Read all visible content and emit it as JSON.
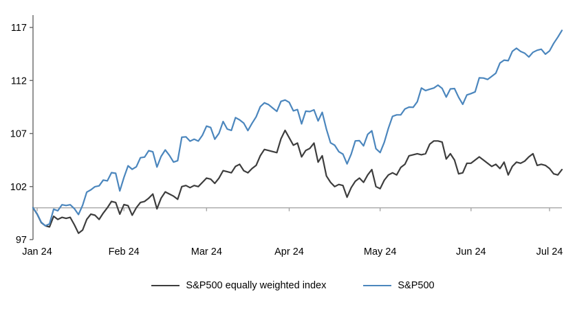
{
  "chart_data": {
    "type": "line",
    "title": "",
    "xlabel": "",
    "ylabel": "",
    "ylim": [
      97,
      117
    ],
    "y_ticks": [
      97,
      102,
      107,
      112,
      117
    ],
    "x_tick_labels": [
      "Jan 24",
      "Feb 24",
      "Mar 24",
      "Apr 24",
      "May 24",
      "Jun 24",
      "Jul 24"
    ],
    "x_tick_indices": [
      1,
      22,
      42,
      62,
      84,
      106,
      125
    ],
    "axis_crosses_at": 100,
    "grid": false,
    "legend_position": "bottom",
    "series": [
      {
        "name": "S&P500 equally weighted index",
        "color": "#3d3d3d",
        "values": [
          100.0,
          99.4,
          98.6,
          98.3,
          98.2,
          99.2,
          98.9,
          99.1,
          99.0,
          99.1,
          98.4,
          97.6,
          97.9,
          98.9,
          99.4,
          99.3,
          98.9,
          99.5,
          100.0,
          100.6,
          100.5,
          99.4,
          100.3,
          100.2,
          99.3,
          100.0,
          100.5,
          100.6,
          100.9,
          101.3,
          99.9,
          100.9,
          101.5,
          101.3,
          101.1,
          100.8,
          102.0,
          102.1,
          101.9,
          102.1,
          102.0,
          102.4,
          102.8,
          102.7,
          102.3,
          102.8,
          103.5,
          103.4,
          103.3,
          103.9,
          104.1,
          103.5,
          103.3,
          103.7,
          104.0,
          104.9,
          105.5,
          105.4,
          105.3,
          105.2,
          106.5,
          107.3,
          106.6,
          105.9,
          106.1,
          104.8,
          105.4,
          105.6,
          106.1,
          104.3,
          104.9,
          103.0,
          102.4,
          102.0,
          102.2,
          102.1,
          101.0,
          101.9,
          102.5,
          102.8,
          102.4,
          103.1,
          103.6,
          102.0,
          101.8,
          102.6,
          103.1,
          103.3,
          103.1,
          103.8,
          104.1,
          104.9,
          105.0,
          105.1,
          105.0,
          105.1,
          106.0,
          106.3,
          106.3,
          106.2,
          104.6,
          105.1,
          104.5,
          103.2,
          103.3,
          104.2,
          104.2,
          104.5,
          104.8,
          104.5,
          104.2,
          103.9,
          104.1,
          103.7,
          104.3,
          103.1,
          103.9,
          104.3,
          104.2,
          104.4,
          104.8,
          105.1,
          104.0,
          104.1,
          104.0,
          103.7,
          103.2,
          103.1,
          103.6
        ]
      },
      {
        "name": "S&P500",
        "color": "#4b86bd",
        "values": [
          100.0,
          99.43,
          98.64,
          98.3,
          98.48,
          99.87,
          99.72,
          100.29,
          100.22,
          100.29,
          99.92,
          99.36,
          100.23,
          101.47,
          101.69,
          101.99,
          102.07,
          102.61,
          102.54,
          103.31,
          103.25,
          101.59,
          102.86,
          103.96,
          103.63,
          103.87,
          104.72,
          104.78,
          105.38,
          105.28,
          103.84,
          104.84,
          105.45,
          104.94,
          104.31,
          104.44,
          106.65,
          106.69,
          106.28,
          106.46,
          106.29,
          106.84,
          107.7,
          107.57,
          106.47,
          107.02,
          108.13,
          107.42,
          107.3,
          108.5,
          108.29,
          107.98,
          107.28,
          107.96,
          108.57,
          109.53,
          109.89,
          109.73,
          109.4,
          109.09,
          110.03,
          110.16,
          109.94,
          109.14,
          109.26,
          107.91,
          109.11,
          109.07,
          109.23,
          108.19,
          109.0,
          107.41,
          106.12,
          105.9,
          105.29,
          105.06,
          104.14,
          105.05,
          106.31,
          106.33,
          105.84,
          106.92,
          107.26,
          105.57,
          105.21,
          106.17,
          107.5,
          108.62,
          108.76,
          108.76,
          109.31,
          109.49,
          109.47,
          110.0,
          111.29,
          111.05,
          111.18,
          111.29,
          111.56,
          111.26,
          110.44,
          111.21,
          111.24,
          110.42,
          109.76,
          110.64,
          110.77,
          110.93,
          112.25,
          112.23,
          112.1,
          112.39,
          112.69,
          113.65,
          113.92,
          113.87,
          114.75,
          115.04,
          114.74,
          114.57,
          114.22,
          114.66,
          114.85,
          114.95,
          114.48,
          114.79,
          115.5,
          116.08,
          116.72
        ]
      }
    ]
  },
  "colors": {
    "background": "#ffffff",
    "x_axis": "#a6a6a6",
    "y_axis": "#666666",
    "tick_label": "#000000"
  }
}
